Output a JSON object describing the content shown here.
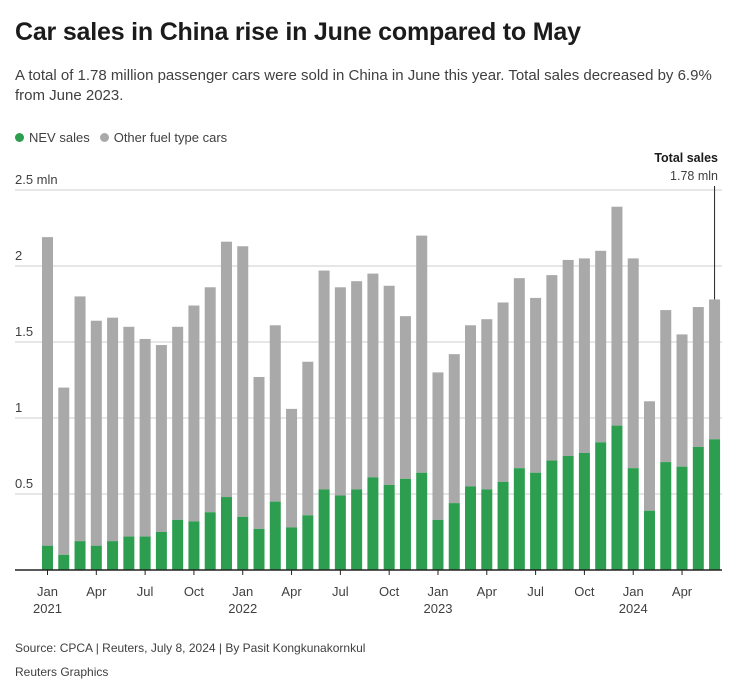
{
  "header": {
    "title": "Car sales in China rise in June compared to May",
    "subtitle": "A total of 1.78 million passenger cars were sold in China in June this year. Total sales decreased by 6.9% from June 2023."
  },
  "legend": {
    "nev_label": "NEV sales",
    "other_label": "Other fuel type cars"
  },
  "annotation": {
    "title": "Total sales",
    "value": "1.78 mln"
  },
  "footer": {
    "source": "Source: CPCA | Reuters, July 8, 2024 | By Pasit Kongkunakornkul",
    "credit": "Reuters Graphics"
  },
  "colors": {
    "nev": "#2d9e4f",
    "other": "#a9a9a9",
    "axis": "#222222",
    "grid": "#cccccc",
    "text": "#404040"
  },
  "chart_data": {
    "type": "bar",
    "stacked": true,
    "ylim": [
      0,
      2.5
    ],
    "ylabel": "",
    "xlabel": "",
    "y_ticks": [
      "2.5 mln",
      "2",
      "1.5",
      "1",
      "0.5"
    ],
    "y_tick_values": [
      2.5,
      2,
      1.5,
      1,
      0.5
    ],
    "x_tick_labels": [
      {
        "index": 0,
        "label": "Jan",
        "year": "2021"
      },
      {
        "index": 3,
        "label": "Apr"
      },
      {
        "index": 6,
        "label": "Jul"
      },
      {
        "index": 9,
        "label": "Oct"
      },
      {
        "index": 12,
        "label": "Jan",
        "year": "2022"
      },
      {
        "index": 15,
        "label": "Apr"
      },
      {
        "index": 18,
        "label": "Jul"
      },
      {
        "index": 21,
        "label": "Oct"
      },
      {
        "index": 24,
        "label": "Jan",
        "year": "2023"
      },
      {
        "index": 27,
        "label": "Apr"
      },
      {
        "index": 30,
        "label": "Jul"
      },
      {
        "index": 33,
        "label": "Oct"
      },
      {
        "index": 36,
        "label": "Jan",
        "year": "2024"
      },
      {
        "index": 39,
        "label": "Apr"
      }
    ],
    "categories": [
      "2021-01",
      "2021-02",
      "2021-03",
      "2021-04",
      "2021-05",
      "2021-06",
      "2021-07",
      "2021-08",
      "2021-09",
      "2021-10",
      "2021-11",
      "2021-12",
      "2022-01",
      "2022-02",
      "2022-03",
      "2022-04",
      "2022-05",
      "2022-06",
      "2022-07",
      "2022-08",
      "2022-09",
      "2022-10",
      "2022-11",
      "2022-12",
      "2023-01",
      "2023-02",
      "2023-03",
      "2023-04",
      "2023-05",
      "2023-06",
      "2023-07",
      "2023-08",
      "2023-09",
      "2023-10",
      "2023-11",
      "2023-12",
      "2024-01",
      "2024-02",
      "2024-03",
      "2024-04",
      "2024-05",
      "2024-06"
    ],
    "series": [
      {
        "name": "NEV sales",
        "values": [
          0.16,
          0.1,
          0.19,
          0.16,
          0.19,
          0.22,
          0.22,
          0.25,
          0.33,
          0.32,
          0.38,
          0.48,
          0.35,
          0.27,
          0.45,
          0.28,
          0.36,
          0.53,
          0.49,
          0.53,
          0.61,
          0.56,
          0.6,
          0.64,
          0.33,
          0.44,
          0.55,
          0.53,
          0.58,
          0.67,
          0.64,
          0.72,
          0.75,
          0.77,
          0.84,
          0.95,
          0.67,
          0.39,
          0.71,
          0.68,
          0.81,
          0.86
        ]
      },
      {
        "name": "Other fuel type cars",
        "values": [
          2.03,
          1.1,
          1.61,
          1.48,
          1.47,
          1.38,
          1.3,
          1.23,
          1.27,
          1.42,
          1.48,
          1.68,
          1.78,
          1.0,
          1.16,
          0.78,
          1.01,
          1.44,
          1.37,
          1.37,
          1.34,
          1.31,
          1.07,
          1.56,
          0.97,
          0.98,
          1.06,
          1.12,
          1.18,
          1.25,
          1.15,
          1.22,
          1.29,
          1.28,
          1.26,
          1.44,
          1.38,
          0.72,
          1.0,
          0.87,
          0.92,
          0.92
        ]
      }
    ],
    "totals": [
      2.19,
      1.2,
      1.8,
      1.64,
      1.66,
      1.6,
      1.52,
      1.48,
      1.6,
      1.74,
      1.86,
      2.16,
      2.13,
      1.27,
      1.61,
      1.06,
      1.37,
      1.97,
      1.86,
      1.9,
      1.95,
      1.87,
      1.67,
      2.2,
      1.3,
      1.42,
      1.61,
      1.65,
      1.76,
      1.92,
      1.79,
      1.94,
      2.04,
      2.05,
      2.1,
      2.39,
      2.05,
      1.11,
      1.71,
      1.55,
      1.73,
      1.78
    ]
  }
}
